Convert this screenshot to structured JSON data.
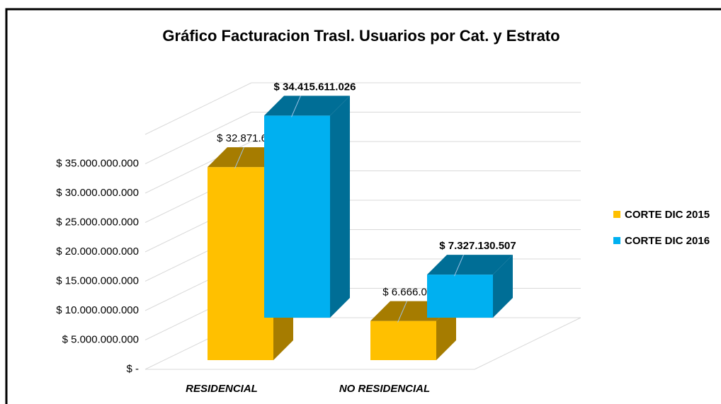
{
  "chart_data": {
    "type": "bar3d",
    "title": "Gráfico Facturacion Trasl. Usuarios por Cat. y Estrato",
    "categories": [
      "RESIDENCIAL",
      "NO RESIDENCIAL"
    ],
    "series": [
      {
        "name": "CORTE DIC 2015",
        "color": "#FFC000",
        "values": [
          32871655150,
          6666060775
        ],
        "value_labels": [
          "$ 32.871.655.150",
          "$ 6.666.060.775"
        ]
      },
      {
        "name": "CORTE DIC 2016",
        "color": "#00B0F0",
        "values": [
          34415611026,
          7327130507
        ],
        "value_labels": [
          "$ 34.415.611.026",
          "$ 7.327.130.507"
        ]
      }
    ],
    "ylim": [
      0,
      40000000000
    ],
    "yticks": [
      {
        "value": 0,
        "label": "$ -"
      },
      {
        "value": 5000000000,
        "label": "$ 5.000.000.000"
      },
      {
        "value": 10000000000,
        "label": "$ 10.000.000.000"
      },
      {
        "value": 15000000000,
        "label": "$ 15.000.000.000"
      },
      {
        "value": 20000000000,
        "label": "$ 20.000.000.000"
      },
      {
        "value": 25000000000,
        "label": "$ 25.000.000.000"
      },
      {
        "value": 30000000000,
        "label": "$ 30.000.000.000"
      },
      {
        "value": 35000000000,
        "label": "$ 35.000.000.000"
      }
    ],
    "grid": true,
    "legend": "right"
  }
}
